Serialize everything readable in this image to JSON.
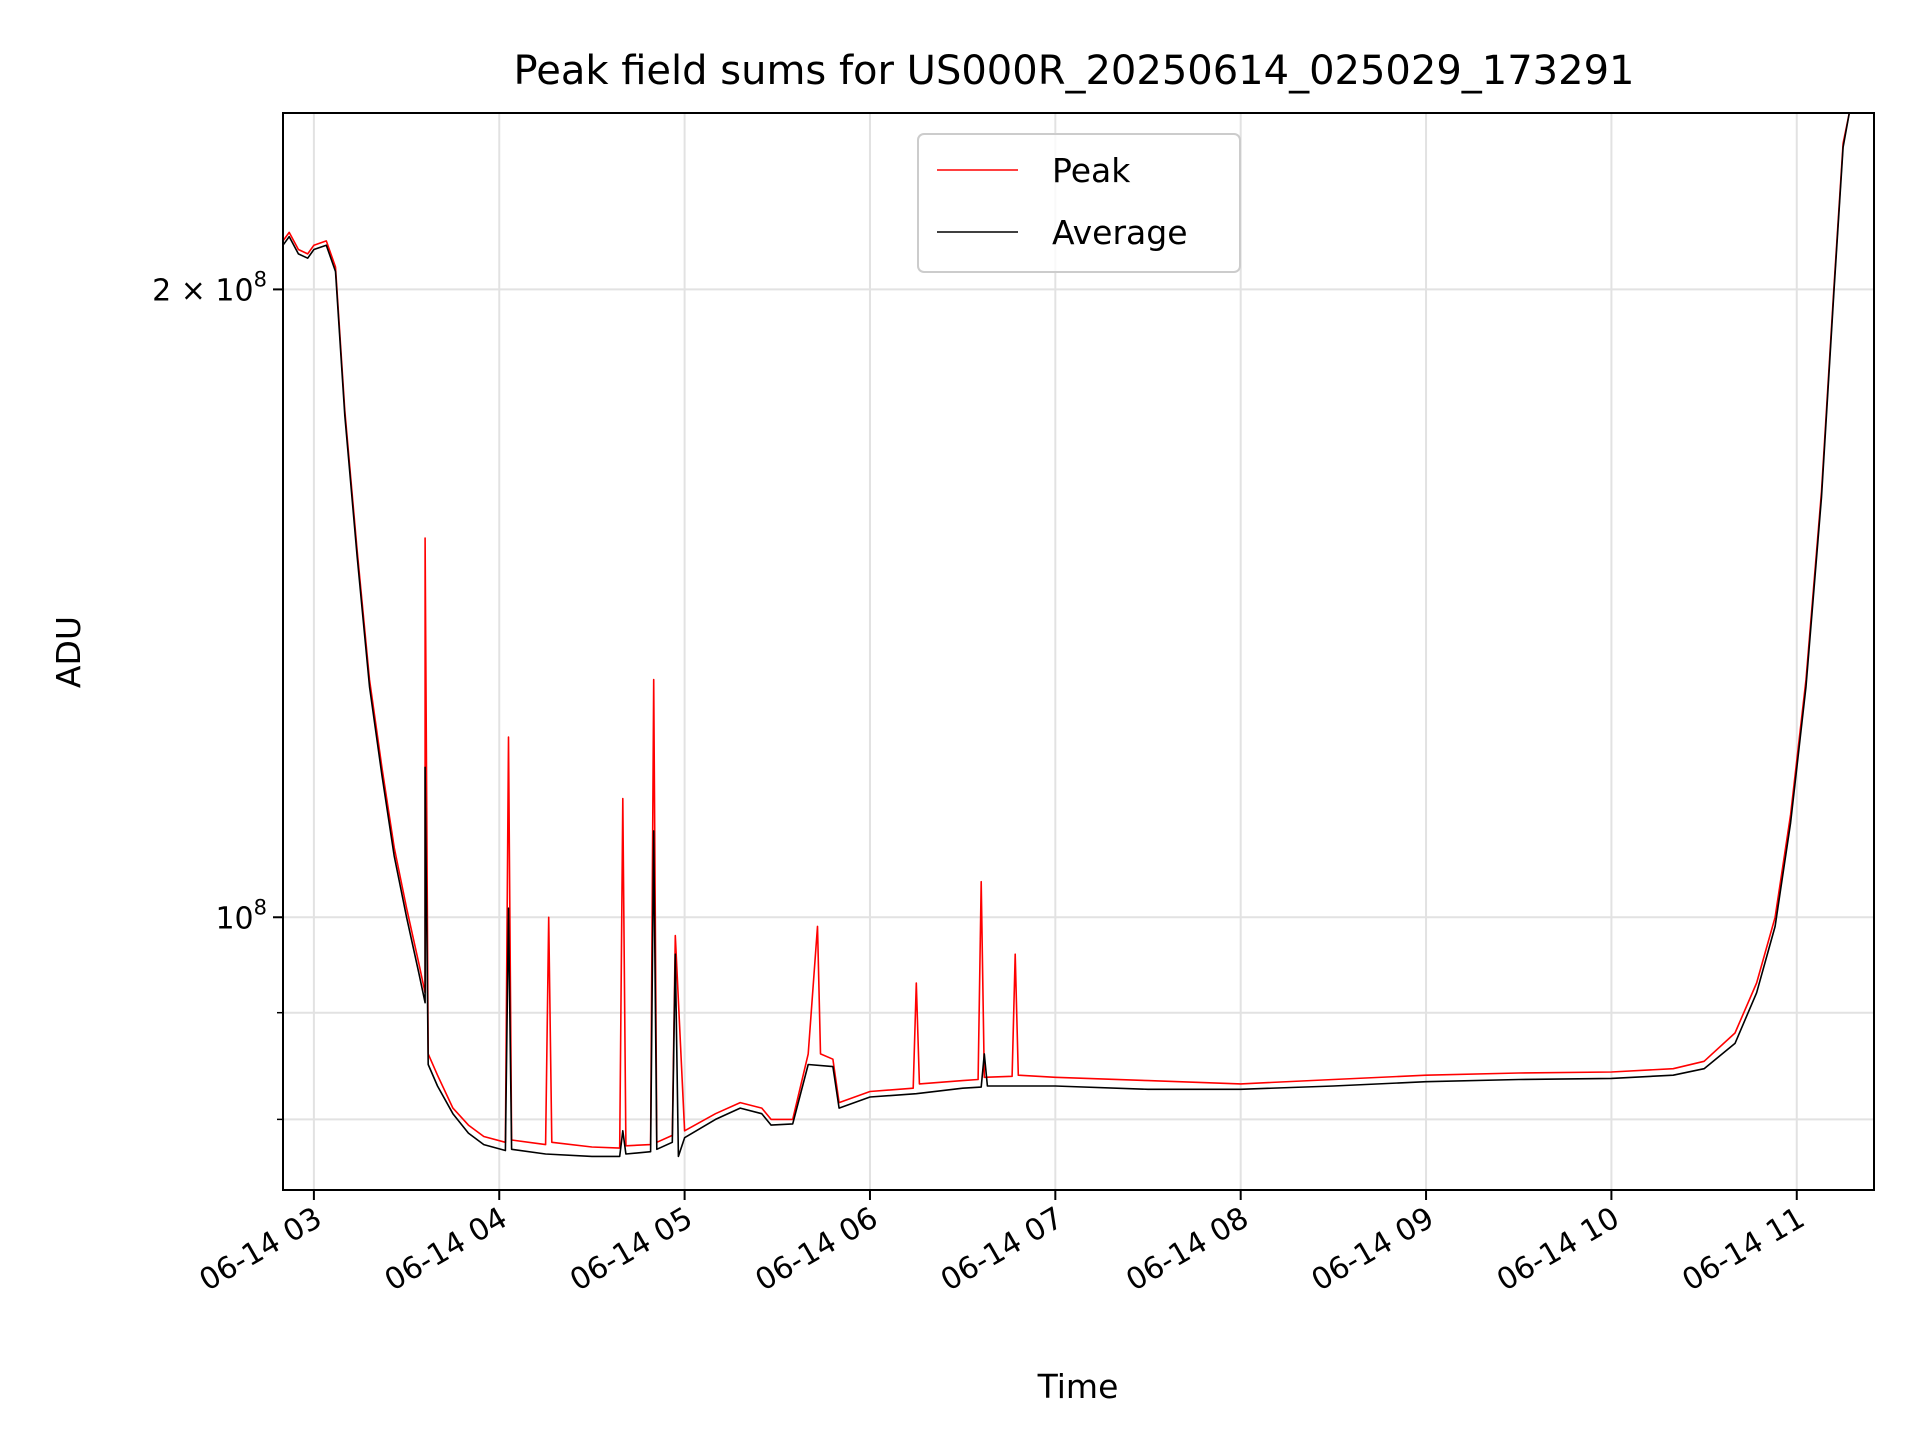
{
  "chart_data": {
    "type": "line",
    "title": "Peak field sums for US000R_20250614_025029_173291",
    "xlabel": "Time",
    "ylabel": "ADU",
    "x_scale": "time",
    "y_scale": "log",
    "xlim": [
      "2025-06-14 02:50",
      "2025-06-14 11:25"
    ],
    "ylim": [
      74000000,
      243000000
    ],
    "grid": true,
    "legend_position": "upper center",
    "x_ticks": [
      {
        "value": "2025-06-14 03:00",
        "label": "06-14 03"
      },
      {
        "value": "2025-06-14 04:00",
        "label": "06-14 04"
      },
      {
        "value": "2025-06-14 05:00",
        "label": "06-14 05"
      },
      {
        "value": "2025-06-14 06:00",
        "label": "06-14 06"
      },
      {
        "value": "2025-06-14 07:00",
        "label": "06-14 07"
      },
      {
        "value": "2025-06-14 08:00",
        "label": "06-14 08"
      },
      {
        "value": "2025-06-14 09:00",
        "label": "06-14 09"
      },
      {
        "value": "2025-06-14 10:00",
        "label": "06-14 10"
      },
      {
        "value": "2025-06-14 11:00",
        "label": "06-14 11"
      }
    ],
    "y_major_ticks": [
      {
        "value": 100000000,
        "mantissa": "",
        "exponent": "8"
      },
      {
        "value": 200000000,
        "mantissa": "2 × ",
        "exponent": "8"
      }
    ],
    "y_minor_ticks": [
      70000000,
      80000000,
      90000000,
      300000000
    ],
    "series": [
      {
        "name": "Peak",
        "color": "#ff0000",
        "points": [
          [
            "2025-06-14 02:50",
            211000000
          ],
          [
            "2025-06-14 02:52",
            213000000
          ],
          [
            "2025-06-14 02:55",
            209000000
          ],
          [
            "2025-06-14 02:58",
            208000000
          ],
          [
            "2025-06-14 03:00",
            210000000
          ],
          [
            "2025-06-14 03:04",
            211000000
          ],
          [
            "2025-06-14 03:07",
            205000000
          ],
          [
            "2025-06-14 03:10",
            175000000
          ],
          [
            "2025-06-14 03:14",
            150000000
          ],
          [
            "2025-06-14 03:18",
            130000000
          ],
          [
            "2025-06-14 03:22",
            118000000
          ],
          [
            "2025-06-14 03:26",
            108000000
          ],
          [
            "2025-06-14 03:30",
            101000000
          ],
          [
            "2025-06-14 03:34",
            95000000
          ],
          [
            "2025-06-14 03:36",
            92000000
          ],
          [
            "2025-06-14 03:36",
            152000000
          ],
          [
            "2025-06-14 03:37",
            86000000
          ],
          [
            "2025-06-14 03:40",
            84000000
          ],
          [
            "2025-06-14 03:45",
            81000000
          ],
          [
            "2025-06-14 03:50",
            79500000
          ],
          [
            "2025-06-14 03:55",
            78500000
          ],
          [
            "2025-06-14 04:02",
            78000000
          ],
          [
            "2025-06-14 04:03",
            122000000
          ],
          [
            "2025-06-14 04:04",
            78200000
          ],
          [
            "2025-06-14 04:15",
            77800000
          ],
          [
            "2025-06-14 04:16",
            100000000
          ],
          [
            "2025-06-14 04:17",
            78000000
          ],
          [
            "2025-06-14 04:30",
            77600000
          ],
          [
            "2025-06-14 04:39",
            77500000
          ],
          [
            "2025-06-14 04:40",
            114000000
          ],
          [
            "2025-06-14 04:41",
            77700000
          ],
          [
            "2025-06-14 04:49",
            77800000
          ],
          [
            "2025-06-14 04:50",
            130000000
          ],
          [
            "2025-06-14 04:51",
            78000000
          ],
          [
            "2025-06-14 04:56",
            78600000
          ],
          [
            "2025-06-14 04:57",
            98000000
          ],
          [
            "2025-06-14 05:00",
            79000000
          ],
          [
            "2025-06-14 05:10",
            80500000
          ],
          [
            "2025-06-14 05:18",
            81500000
          ],
          [
            "2025-06-14 05:25",
            81000000
          ],
          [
            "2025-06-14 05:28",
            80000000
          ],
          [
            "2025-06-14 05:35",
            80000000
          ],
          [
            "2025-06-14 05:40",
            86000000
          ],
          [
            "2025-06-14 05:43",
            99000000
          ],
          [
            "2025-06-14 05:44",
            86000000
          ],
          [
            "2025-06-14 05:48",
            85500000
          ],
          [
            "2025-06-14 05:50",
            81500000
          ],
          [
            "2025-06-14 06:00",
            82500000
          ],
          [
            "2025-06-14 06:14",
            82800000
          ],
          [
            "2025-06-14 06:15",
            93000000
          ],
          [
            "2025-06-14 06:16",
            83200000
          ],
          [
            "2025-06-14 06:30",
            83500000
          ],
          [
            "2025-06-14 06:35",
            83600000
          ],
          [
            "2025-06-14 06:36",
            104000000
          ],
          [
            "2025-06-14 06:37",
            83800000
          ],
          [
            "2025-06-14 06:46",
            83900000
          ],
          [
            "2025-06-14 06:47",
            96000000
          ],
          [
            "2025-06-14 06:48",
            84000000
          ],
          [
            "2025-06-14 07:00",
            83800000
          ],
          [
            "2025-06-14 07:30",
            83500000
          ],
          [
            "2025-06-14 08:00",
            83200000
          ],
          [
            "2025-06-14 08:30",
            83600000
          ],
          [
            "2025-06-14 09:00",
            84000000
          ],
          [
            "2025-06-14 09:30",
            84200000
          ],
          [
            "2025-06-14 10:00",
            84300000
          ],
          [
            "2025-06-14 10:20",
            84600000
          ],
          [
            "2025-06-14 10:30",
            85300000
          ],
          [
            "2025-06-14 10:40",
            88000000
          ],
          [
            "2025-06-14 10:47",
            93000000
          ],
          [
            "2025-06-14 10:53",
            100000000
          ],
          [
            "2025-06-14 10:58",
            112000000
          ],
          [
            "2025-06-14 11:03",
            130000000
          ],
          [
            "2025-06-14 11:08",
            160000000
          ],
          [
            "2025-06-14 11:12",
            200000000
          ],
          [
            "2025-06-14 11:15",
            235000000
          ],
          [
            "2025-06-14 11:17",
            243000000
          ],
          [
            "2025-06-14 11:25",
            243000000
          ]
        ]
      },
      {
        "name": "Average",
        "color": "#000000",
        "points": [
          [
            "2025-06-14 02:50",
            210000000
          ],
          [
            "2025-06-14 02:52",
            212000000
          ],
          [
            "2025-06-14 02:55",
            208000000
          ],
          [
            "2025-06-14 02:58",
            207000000
          ],
          [
            "2025-06-14 03:00",
            209000000
          ],
          [
            "2025-06-14 03:04",
            210000000
          ],
          [
            "2025-06-14 03:07",
            204000000
          ],
          [
            "2025-06-14 03:10",
            174000000
          ],
          [
            "2025-06-14 03:14",
            149000000
          ],
          [
            "2025-06-14 03:18",
            129000000
          ],
          [
            "2025-06-14 03:22",
            117000000
          ],
          [
            "2025-06-14 03:26",
            107000000
          ],
          [
            "2025-06-14 03:30",
            100000000
          ],
          [
            "2025-06-14 03:34",
            94000000
          ],
          [
            "2025-06-14 03:36",
            91000000
          ],
          [
            "2025-06-14 03:36",
            118000000
          ],
          [
            "2025-06-14 03:37",
            85000000
          ],
          [
            "2025-06-14 03:40",
            83000000
          ],
          [
            "2025-06-14 03:45",
            80500000
          ],
          [
            "2025-06-14 03:50",
            78800000
          ],
          [
            "2025-06-14 03:55",
            77800000
          ],
          [
            "2025-06-14 04:02",
            77300000
          ],
          [
            "2025-06-14 04:03",
            101000000
          ],
          [
            "2025-06-14 04:04",
            77400000
          ],
          [
            "2025-06-14 04:15",
            77000000
          ],
          [
            "2025-06-14 04:30",
            76800000
          ],
          [
            "2025-06-14 04:39",
            76800000
          ],
          [
            "2025-06-14 04:40",
            79000000
          ],
          [
            "2025-06-14 04:41",
            77000000
          ],
          [
            "2025-06-14 04:49",
            77200000
          ],
          [
            "2025-06-14 04:50",
            110000000
          ],
          [
            "2025-06-14 04:51",
            77400000
          ],
          [
            "2025-06-14 04:56",
            78000000
          ],
          [
            "2025-06-14 04:57",
            96000000
          ],
          [
            "2025-06-14 04:58",
            76800000
          ],
          [
            "2025-06-14 05:00",
            78400000
          ],
          [
            "2025-06-14 05:10",
            80000000
          ],
          [
            "2025-06-14 05:18",
            81000000
          ],
          [
            "2025-06-14 05:25",
            80500000
          ],
          [
            "2025-06-14 05:28",
            79500000
          ],
          [
            "2025-06-14 05:35",
            79600000
          ],
          [
            "2025-06-14 05:40",
            85000000
          ],
          [
            "2025-06-14 05:48",
            84800000
          ],
          [
            "2025-06-14 05:50",
            81000000
          ],
          [
            "2025-06-14 06:00",
            82000000
          ],
          [
            "2025-06-14 06:15",
            82300000
          ],
          [
            "2025-06-14 06:30",
            82800000
          ],
          [
            "2025-06-14 06:36",
            82900000
          ],
          [
            "2025-06-14 06:37",
            86000000
          ],
          [
            "2025-06-14 06:38",
            83000000
          ],
          [
            "2025-06-14 07:00",
            83000000
          ],
          [
            "2025-06-14 07:30",
            82700000
          ],
          [
            "2025-06-14 08:00",
            82700000
          ],
          [
            "2025-06-14 08:30",
            83000000
          ],
          [
            "2025-06-14 09:00",
            83400000
          ],
          [
            "2025-06-14 09:30",
            83600000
          ],
          [
            "2025-06-14 10:00",
            83700000
          ],
          [
            "2025-06-14 10:20",
            84000000
          ],
          [
            "2025-06-14 10:30",
            84600000
          ],
          [
            "2025-06-14 10:40",
            87000000
          ],
          [
            "2025-06-14 10:47",
            92000000
          ],
          [
            "2025-06-14 10:53",
            99000000
          ],
          [
            "2025-06-14 10:58",
            111000000
          ],
          [
            "2025-06-14 11:03",
            129000000
          ],
          [
            "2025-06-14 11:08",
            159000000
          ],
          [
            "2025-06-14 11:12",
            199000000
          ],
          [
            "2025-06-14 11:15",
            234000000
          ],
          [
            "2025-06-14 11:17",
            243000000
          ],
          [
            "2025-06-14 11:25",
            243000000
          ]
        ]
      }
    ]
  }
}
